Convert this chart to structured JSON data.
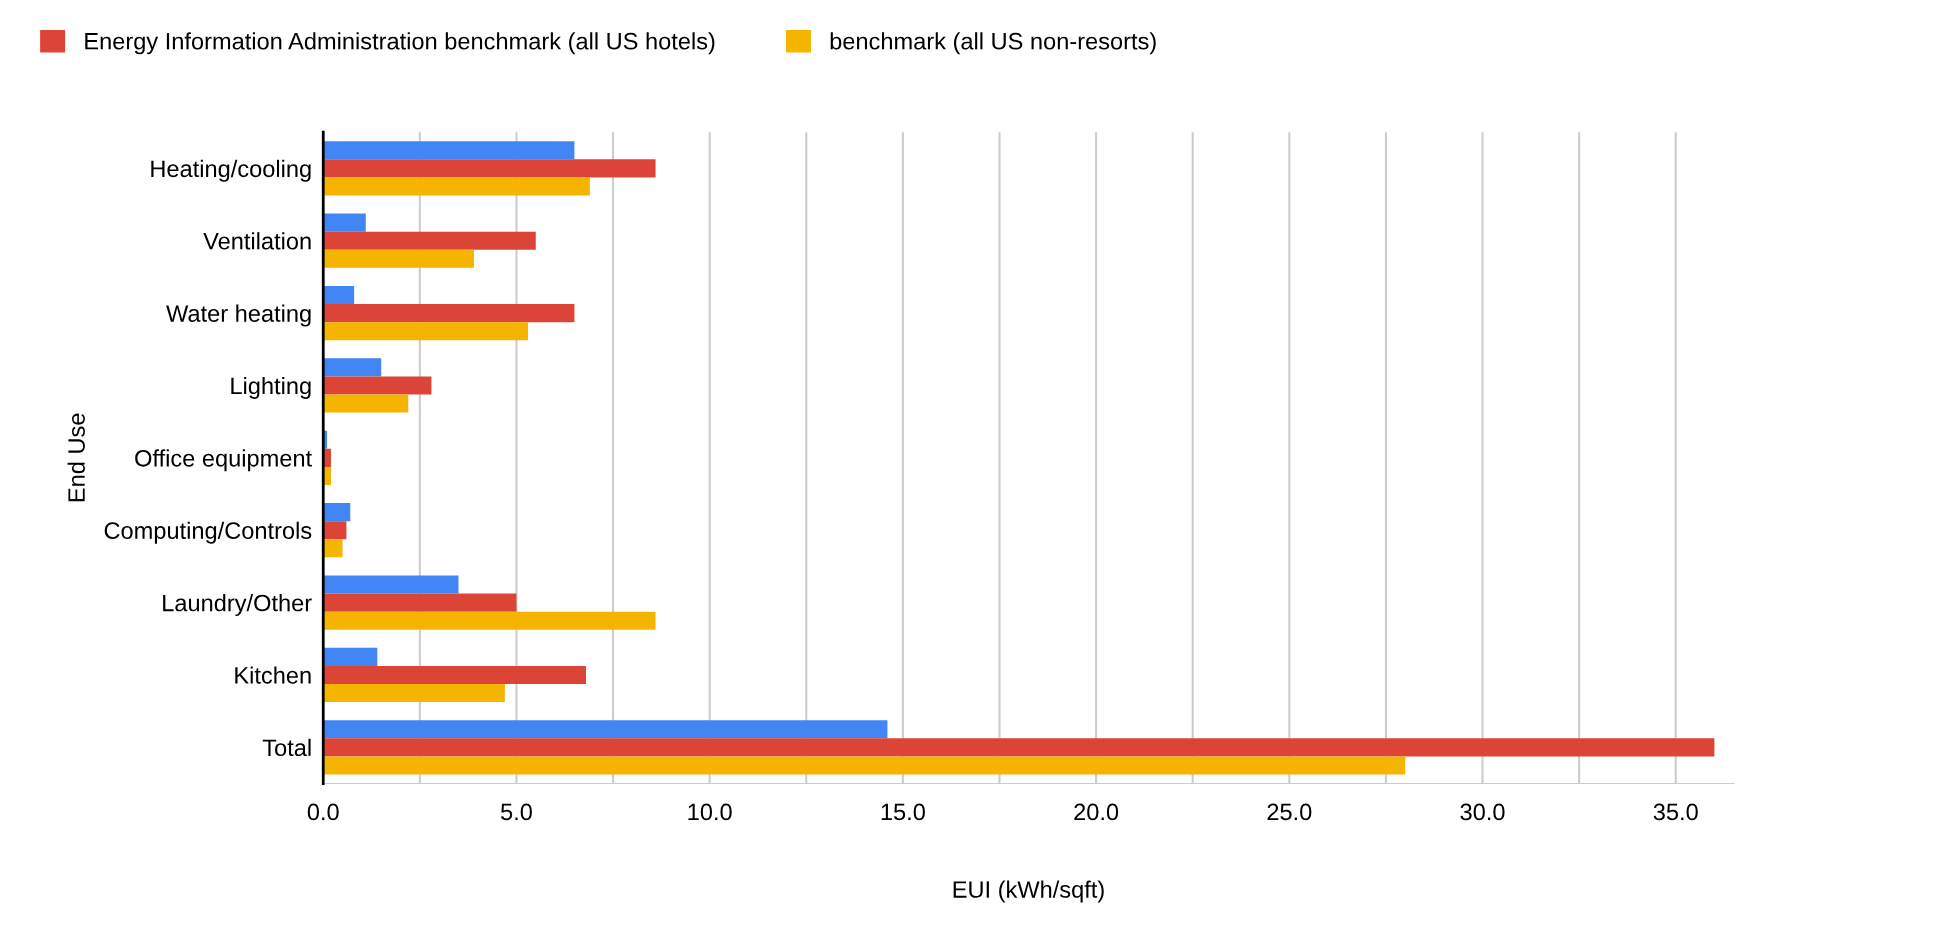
{
  "chart_data": {
    "type": "bar",
    "orientation": "horizontal",
    "xlabel": "EUI (kWh/sqft)",
    "ylabel": "End Use",
    "categories": [
      "Heating/cooling",
      "Ventilation",
      "Water heating",
      "Lighting",
      "Office equipment",
      "Computing/Controls",
      "Laundry/Other",
      "Kitchen",
      "Total"
    ],
    "series": [
      {
        "color": "#4285f4",
        "values": [
          6.5,
          1.1,
          0.8,
          1.5,
          0.1,
          0.7,
          3.5,
          1.4,
          14.6
        ]
      },
      {
        "name": "Energy Information Administration benchmark (all US hotels)",
        "color": "#db4437",
        "values": [
          8.6,
          5.5,
          6.5,
          2.8,
          0.2,
          0.6,
          5.0,
          6.8,
          36.0
        ]
      },
      {
        "name": "benchmark (all US non-resorts)",
        "color": "#f4b400",
        "values": [
          6.9,
          3.9,
          5.3,
          2.2,
          0.2,
          0.5,
          8.6,
          4.7,
          28.0
        ]
      }
    ],
    "xlim": [
      0,
      36.5
    ],
    "xticks": [
      {
        "value": 0,
        "label": "0.0"
      },
      {
        "value": 2.5,
        "label": null
      },
      {
        "value": 5,
        "label": "5.0"
      },
      {
        "value": 7.5,
        "label": null
      },
      {
        "value": 10,
        "label": "10.0"
      },
      {
        "value": 12.5,
        "label": null
      },
      {
        "value": 15,
        "label": "15.0"
      },
      {
        "value": 17.5,
        "label": null
      },
      {
        "value": 20,
        "label": "20.0"
      },
      {
        "value": 22.5,
        "label": null
      },
      {
        "value": 25,
        "label": "25.0"
      },
      {
        "value": 27.5,
        "label": null
      },
      {
        "value": 30,
        "label": "30.0"
      },
      {
        "value": 32.5,
        "label": null
      },
      {
        "value": 35,
        "label": "35.0"
      }
    ],
    "grid": "x",
    "legend": "top"
  }
}
